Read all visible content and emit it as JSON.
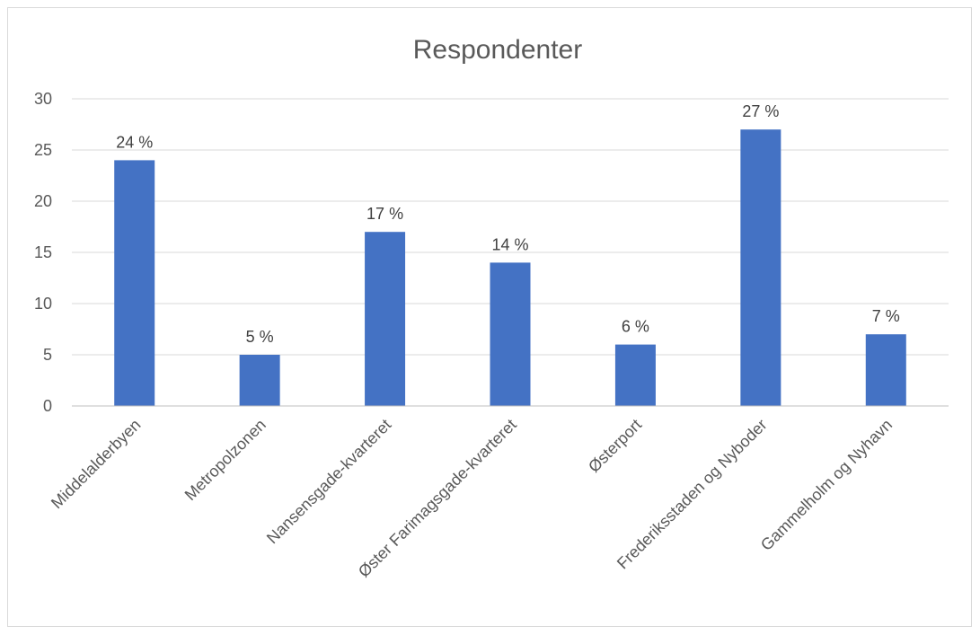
{
  "chart_data": {
    "type": "bar",
    "title": "Respondenter",
    "categories": [
      "Middelalderbyen",
      "Metropolzonen",
      "Nansensgade-kvarteret",
      "Øster Farimagsgade-kvarteret",
      "Østerport",
      "Frederiksstaden og Nyboder",
      "Gammelholm og Nyhavn"
    ],
    "values": [
      24,
      5,
      17,
      14,
      6,
      27,
      7
    ],
    "data_labels": [
      "24 %",
      "5 %",
      "17 %",
      "14 %",
      "6 %",
      "27 %",
      "7 %"
    ],
    "xlabel": "",
    "ylabel": "",
    "ylim": [
      0,
      30
    ],
    "yticks": [
      0,
      5,
      10,
      15,
      20,
      25,
      30
    ],
    "grid": true,
    "legend": "none",
    "bar_color": "#4472c4"
  }
}
